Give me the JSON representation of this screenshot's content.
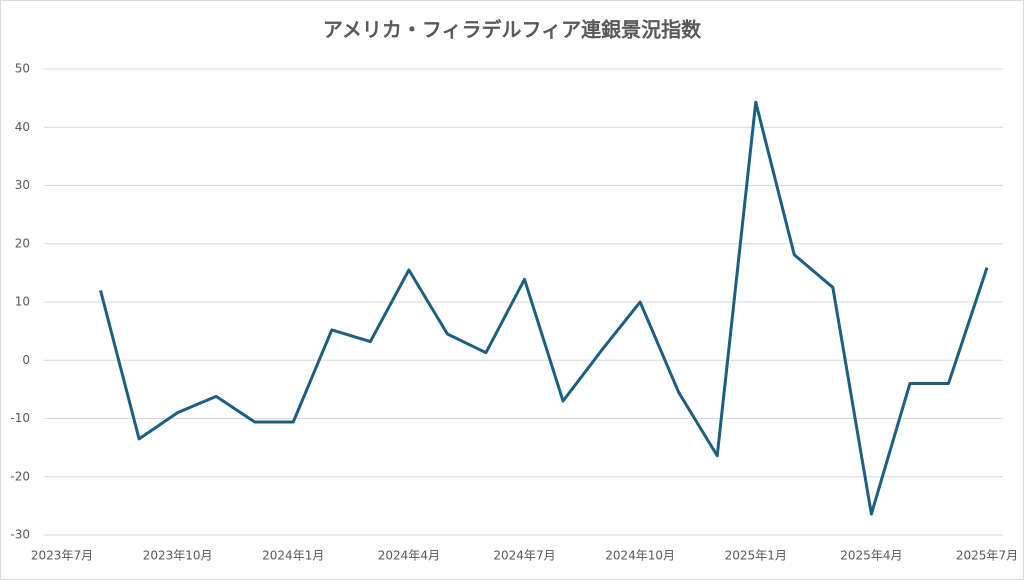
{
  "chart_data": {
    "type": "line",
    "title": "アメリカ・フィラデルフィア連銀景況指数",
    "categories": [
      "2023年7月",
      null,
      null,
      "2023年10月",
      null,
      null,
      "2024年1月",
      null,
      null,
      "2024年4月",
      null,
      null,
      "2024年7月",
      null,
      null,
      "2024年10月",
      null,
      null,
      "2025年1月",
      null,
      null,
      "2025年4月",
      null,
      null,
      "2025年7月"
    ],
    "series": [
      {
        "name": "フィラデルフィア連銀景況指数",
        "color": "#1d5f80",
        "values": [
          null,
          12.0,
          -13.5,
          -9.0,
          -6.2,
          -10.6,
          -10.6,
          5.2,
          3.2,
          15.5,
          4.5,
          1.3,
          13.9,
          -7.0,
          1.7,
          10.0,
          -5.5,
          -16.4,
          44.3,
          18.1,
          12.5,
          -26.4,
          -4.0,
          -4.0,
          15.9
        ]
      }
    ],
    "ylim": [
      -30,
      50
    ],
    "yticks": [
      -30,
      -20,
      -10,
      0,
      10,
      20,
      30,
      40,
      50
    ],
    "grid": true
  }
}
